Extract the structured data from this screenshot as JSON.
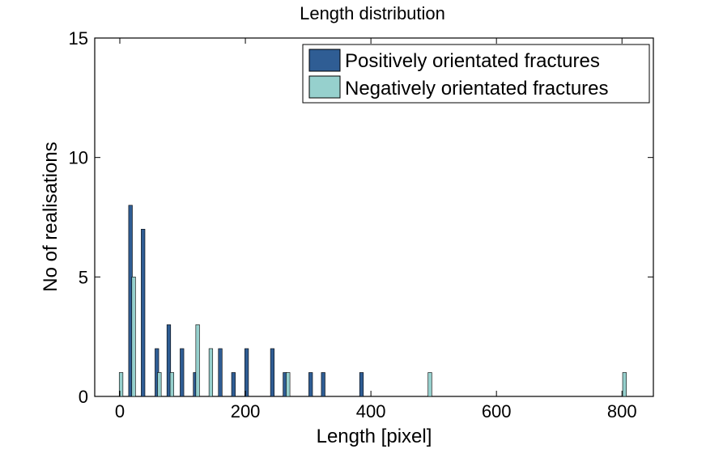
{
  "chart_data": {
    "type": "bar",
    "title": "Length distribution",
    "xlabel": "Length [pixel]",
    "ylabel": "No of realisations",
    "xlim": [
      -40,
      850
    ],
    "ylim": [
      0,
      15
    ],
    "xticks": [
      0,
      200,
      400,
      600,
      800
    ],
    "yticks": [
      0,
      5,
      10,
      15
    ],
    "grid": false,
    "legend_position": "top-right",
    "series": [
      {
        "name": "Positively orientated fractures",
        "color": "#2f5d94",
        "x": [
          17,
          37,
          59,
          78,
          99,
          120,
          160,
          181,
          202,
          243,
          263,
          304,
          324,
          385
        ],
        "values": [
          8,
          7,
          2,
          3,
          2,
          1,
          2,
          1,
          2,
          2,
          1,
          1,
          1,
          1
        ]
      },
      {
        "name": "Negatively orientated fractures",
        "color": "#96d0cd",
        "x": [
          2,
          22,
          63,
          83,
          124,
          145,
          268,
          494,
          804
        ],
        "values": [
          1,
          5,
          1,
          1,
          3,
          2,
          1,
          1,
          1
        ]
      }
    ]
  }
}
